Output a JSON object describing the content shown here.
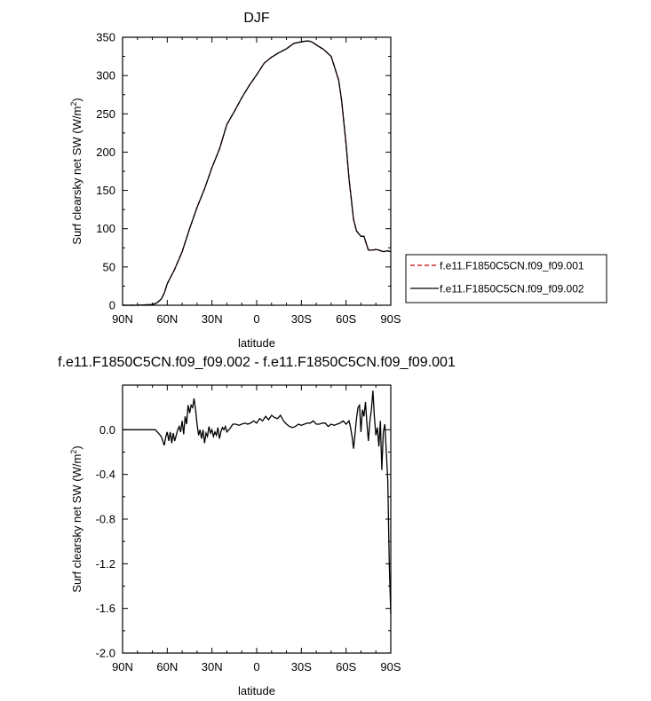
{
  "chart_data": [
    {
      "type": "line",
      "title": "DJF",
      "xlabel": "latitude",
      "ylabel": "Surf clearsky net SW (W/m²)",
      "ylabel_main": "Surf clearsky net SW (W/m",
      "ylabel_sup": "2",
      "ylabel_end": ")",
      "x_domain": [
        -90,
        90
      ],
      "xlim": [
        90,
        -90
      ],
      "ylim": [
        0,
        350
      ],
      "xticks": [
        90,
        60,
        30,
        0,
        -30,
        -60,
        -90
      ],
      "xtick_labels": [
        "90N",
        "60N",
        "30N",
        "0",
        "30S",
        "60S",
        "90S"
      ],
      "yticks": [
        0,
        50,
        100,
        150,
        200,
        250,
        300,
        350
      ],
      "ytick_labels": [
        "0",
        "50",
        "100",
        "150",
        "200",
        "250",
        "300",
        "350"
      ],
      "legend": {
        "placement": "right",
        "entries": [
          {
            "label": "f.e11.F1850C5CN.f09_f09.001",
            "color": "#cc0000",
            "dash": "dashed"
          },
          {
            "label": "f.e11.F1850C5CN.f09_f09.002",
            "color": "#000000",
            "dash": "solid"
          }
        ]
      },
      "series": [
        {
          "name": "f.e11.F1850C5CN.f09_f09.001",
          "color": "#cc0000",
          "dash": "dashed",
          "x": [
            90,
            80,
            70,
            67,
            64,
            62,
            60,
            55,
            50,
            45,
            40,
            35,
            30,
            25,
            20,
            15,
            10,
            5,
            0,
            -5,
            -10,
            -15,
            -20,
            -25,
            -30,
            -33,
            -35,
            -37,
            -40,
            -45,
            -50,
            -55,
            -57,
            -60,
            -62,
            -65,
            -67,
            -70,
            -72,
            -75,
            -78,
            -80,
            -82,
            -85,
            -88,
            -90
          ],
          "y": [
            0,
            0,
            1,
            3,
            8,
            16,
            28,
            47,
            70,
            100,
            128,
            152,
            180,
            204,
            236,
            253,
            271,
            287,
            301,
            316,
            324,
            330,
            335,
            342,
            344,
            345,
            345,
            344,
            340,
            334,
            325,
            294,
            268,
            210,
            165,
            112,
            97,
            90,
            90,
            72,
            72,
            73,
            72,
            70,
            71,
            70
          ]
        },
        {
          "name": "f.e11.F1850C5CN.f09_f09.002",
          "color": "#000000",
          "dash": "solid",
          "x": [
            90,
            80,
            70,
            67,
            64,
            62,
            60,
            55,
            50,
            45,
            40,
            35,
            30,
            25,
            20,
            15,
            10,
            5,
            0,
            -5,
            -10,
            -15,
            -20,
            -25,
            -30,
            -33,
            -35,
            -37,
            -40,
            -45,
            -50,
            -55,
            -57,
            -60,
            -62,
            -65,
            -67,
            -70,
            -72,
            -75,
            -78,
            -80,
            -82,
            -85,
            -88,
            -90
          ],
          "y": [
            0,
            0,
            1,
            3,
            8,
            16,
            28,
            47,
            70,
            100,
            128,
            152,
            180,
            204,
            236,
            253,
            271,
            287,
            301,
            316,
            324,
            330,
            335,
            342,
            344,
            345,
            345,
            344,
            340,
            334,
            325,
            294,
            268,
            210,
            165,
            112,
            97,
            90,
            90,
            72,
            72,
            73,
            72,
            70,
            71,
            70
          ]
        }
      ]
    },
    {
      "type": "line",
      "title": "f.e11.F1850C5CN.f09_f09.002 - f.e11.F1850C5CN.f09_f09.001",
      "xlabel": "latitude",
      "ylabel": "Surf clearsky net SW (W/m²)",
      "ylabel_main": "Surf clearsky net SW (W/m",
      "ylabel_sup": "2",
      "ylabel_end": ")",
      "x_domain": [
        -90,
        90
      ],
      "xlim": [
        90,
        -90
      ],
      "ylim": [
        -2.0,
        0.4
      ],
      "xticks": [
        90,
        60,
        30,
        0,
        -30,
        -60,
        -90
      ],
      "xtick_labels": [
        "90N",
        "60N",
        "30N",
        "0",
        "30S",
        "60S",
        "90S"
      ],
      "yticks": [
        0.0,
        -0.4,
        -0.8,
        -1.2,
        -1.6,
        -2.0
      ],
      "ytick_labels": [
        "0.0",
        "-0.4",
        "-0.8",
        "-1.2",
        "-1.6",
        "-2.0"
      ],
      "series": [
        {
          "color": "#000000",
          "dash": "solid",
          "x": [
            90,
            75,
            68,
            66,
            64,
            63,
            62,
            61,
            60,
            59,
            58,
            57,
            56,
            55,
            54,
            53,
            52,
            51,
            50,
            49,
            48,
            47,
            46,
            45,
            44,
            43,
            42,
            41,
            40,
            39,
            38,
            37,
            36,
            35,
            34,
            33,
            32,
            31,
            30,
            29,
            28,
            27,
            26,
            25,
            24,
            23,
            22,
            21,
            20,
            18,
            16,
            14,
            12,
            10,
            8,
            6,
            4,
            2,
            0,
            -2,
            -4,
            -6,
            -8,
            -10,
            -12,
            -14,
            -16,
            -18,
            -20,
            -22,
            -24,
            -26,
            -28,
            -30,
            -32,
            -34,
            -36,
            -38,
            -40,
            -42,
            -44,
            -46,
            -48,
            -50,
            -52,
            -54,
            -56,
            -58,
            -60,
            -62,
            -63,
            -64,
            -65,
            -66,
            -67,
            -68,
            -69,
            -70,
            -71,
            -72,
            -73,
            -74,
            -75,
            -76,
            -77,
            -78,
            -79,
            -80,
            -81,
            -82,
            -83,
            -84,
            -85,
            -86,
            -87,
            -88,
            -89,
            -90
          ],
          "y": [
            0.0,
            0.0,
            0.0,
            -0.03,
            -0.06,
            -0.1,
            -0.14,
            -0.06,
            -0.02,
            -0.1,
            -0.02,
            -0.12,
            -0.03,
            -0.1,
            -0.05,
            0.0,
            0.03,
            -0.02,
            0.08,
            -0.04,
            0.12,
            0.05,
            0.22,
            0.15,
            0.22,
            0.2,
            0.28,
            0.18,
            0.05,
            -0.05,
            0.0,
            -0.08,
            0.0,
            -0.12,
            -0.03,
            -0.06,
            0.03,
            -0.03,
            0.0,
            -0.06,
            -0.02,
            -0.05,
            0.02,
            -0.08,
            -0.02,
            0.02,
            0.0,
            0.03,
            -0.02,
            0.01,
            0.05,
            0.05,
            0.04,
            0.05,
            0.06,
            0.05,
            0.06,
            0.08,
            0.06,
            0.1,
            0.08,
            0.12,
            0.09,
            0.13,
            0.11,
            0.1,
            0.13,
            0.08,
            0.05,
            0.03,
            0.02,
            0.03,
            0.05,
            0.04,
            0.05,
            0.06,
            0.06,
            0.08,
            0.05,
            0.05,
            0.06,
            0.06,
            0.03,
            0.05,
            0.04,
            0.05,
            0.06,
            0.08,
            0.05,
            0.08,
            0.02,
            -0.06,
            -0.17,
            -0.04,
            0.1,
            0.2,
            0.22,
            -0.02,
            0.18,
            0.12,
            0.25,
            0.05,
            -0.1,
            0.08,
            0.18,
            0.35,
            0.12,
            -0.05,
            0.02,
            -0.15,
            0.08,
            -0.36,
            -0.02,
            0.05,
            -0.2,
            -0.45,
            -1.2,
            -1.65
          ]
        }
      ]
    }
  ]
}
